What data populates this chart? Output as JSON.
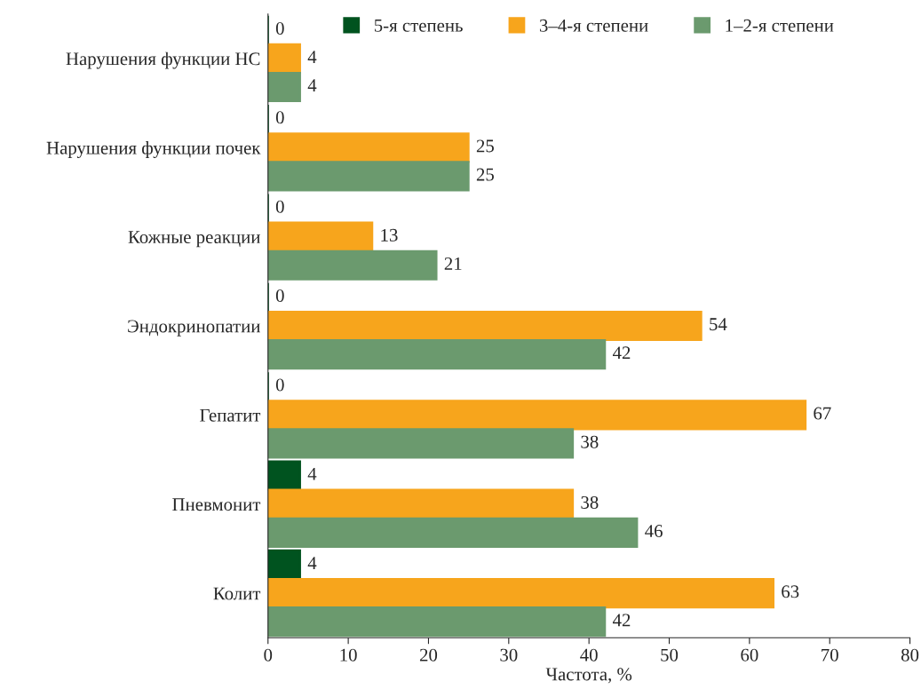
{
  "chart_data": {
    "type": "bar",
    "orientation": "horizontal",
    "xlabel": "Частота, %",
    "categories": [
      "Нарушения функции НС",
      "Нарушения функции почек",
      "Кожные реакции",
      "Эндокринопатии",
      "Гепатит",
      "Пневмонит",
      "Колит"
    ],
    "series": [
      {
        "name": "5-я степень",
        "color": "#00531f",
        "values": [
          0,
          0,
          0,
          0,
          0,
          4,
          4
        ]
      },
      {
        "name": "3–4-я степени",
        "color": "#f7a51c",
        "values": [
          4,
          25,
          13,
          54,
          67,
          38,
          63
        ]
      },
      {
        "name": "1–2-я степени",
        "color": "#6b9a6e",
        "values": [
          4,
          25,
          21,
          42,
          38,
          46,
          42
        ]
      }
    ],
    "xlim": [
      0,
      80
    ],
    "xticks": [
      0,
      10,
      20,
      30,
      40,
      50,
      60,
      70,
      80
    ],
    "data_labels": true,
    "grid": false,
    "legend": "top"
  }
}
